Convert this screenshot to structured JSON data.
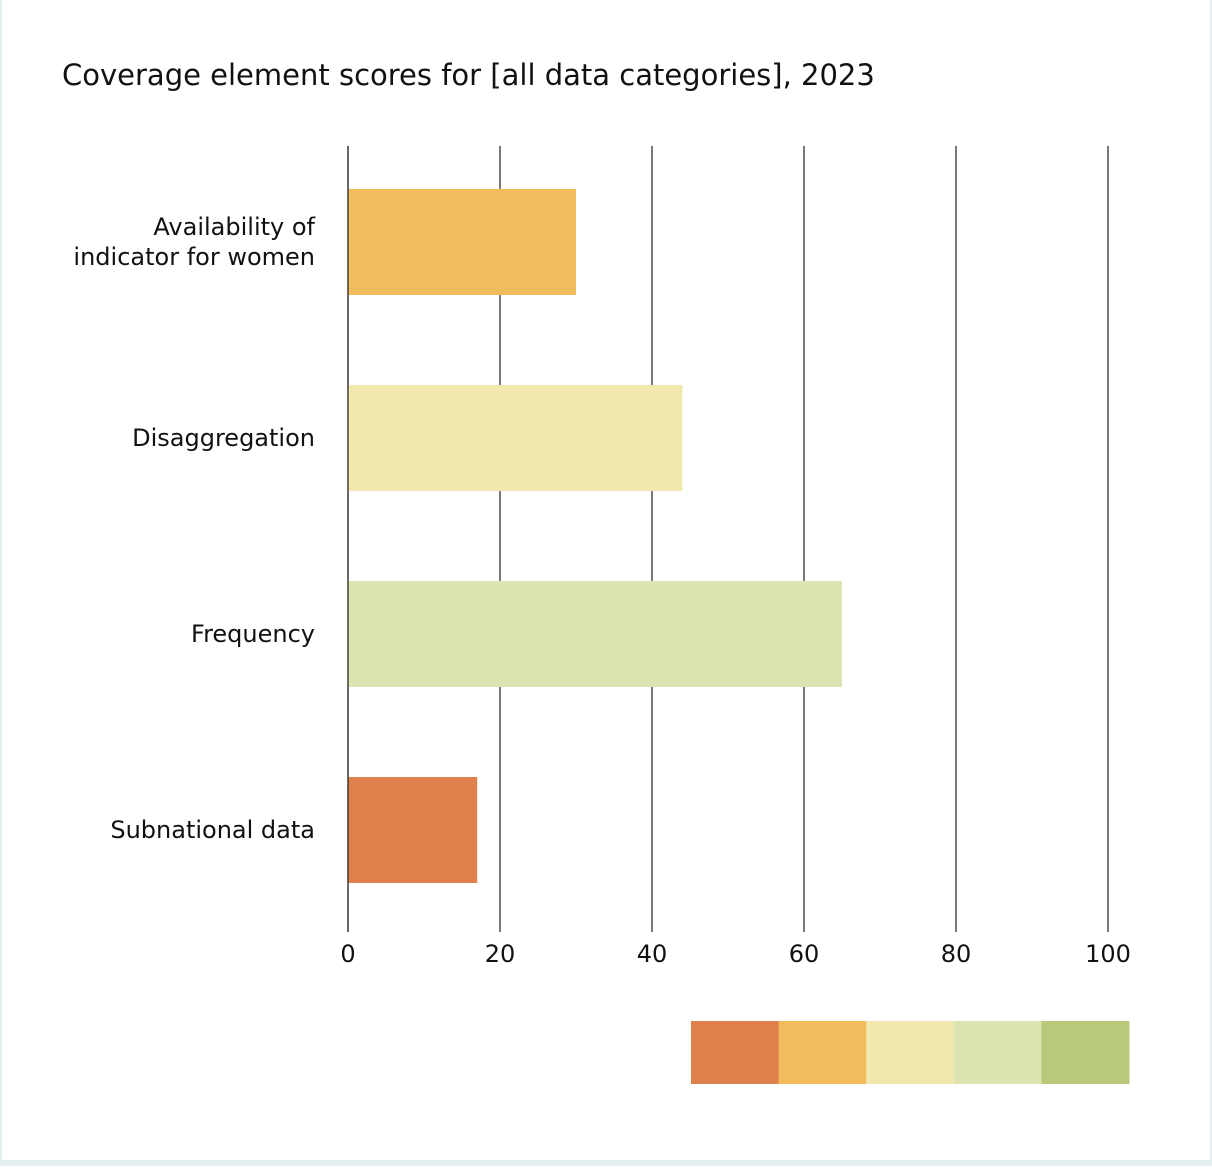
{
  "chart_data": {
    "type": "bar",
    "orientation": "horizontal",
    "title": "Coverage element scores for [all data categories], 2023",
    "categories": [
      "Availability of indicator for women",
      "Disaggregation",
      "Frequency",
      "Subnational data"
    ],
    "category_lines": [
      [
        "Availability of",
        "indicator for women"
      ],
      [
        "Disaggregation"
      ],
      [
        "Frequency"
      ],
      [
        "Subnational data"
      ]
    ],
    "values": [
      30,
      44,
      65,
      17
    ],
    "bar_colors": [
      "#f1bc5c",
      "#f1e8ae",
      "#dde4b1",
      "#df814c"
    ],
    "xlim": [
      0,
      100
    ],
    "xticks": [
      "0",
      "20",
      "40",
      "60",
      "80",
      "100"
    ],
    "xlabel": "",
    "ylabel": "",
    "grid": true,
    "legend": {
      "type": "color-scale",
      "placement": "bottom-right",
      "colors": [
        "#df814c",
        "#f1bc5c",
        "#f1e8ae",
        "#dde4b1",
        "#b9c97a"
      ]
    }
  }
}
